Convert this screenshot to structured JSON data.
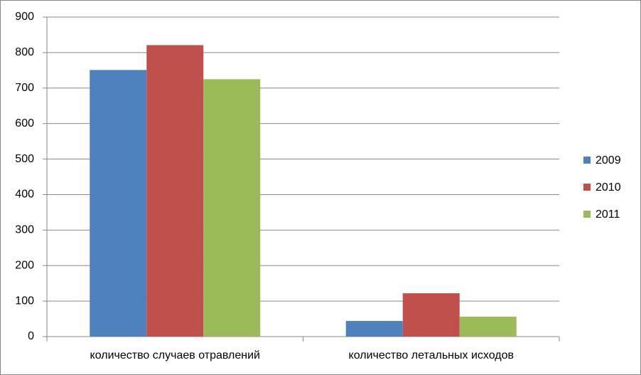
{
  "chart_data": {
    "type": "bar",
    "categories": [
      "количество случаев отравлений",
      "количество летальных исходов"
    ],
    "series": [
      {
        "name": "2009",
        "color": "#4f81bd",
        "values": [
          751,
          44
        ]
      },
      {
        "name": "2010",
        "color": "#c0504d",
        "values": [
          821,
          122
        ]
      },
      {
        "name": "2011",
        "color": "#9bbb59",
        "values": [
          725,
          56
        ]
      }
    ],
    "ylim": [
      0,
      900
    ],
    "yticks": [
      0,
      100,
      200,
      300,
      400,
      500,
      600,
      700,
      800,
      900
    ],
    "grid": true,
    "legend": "right"
  }
}
